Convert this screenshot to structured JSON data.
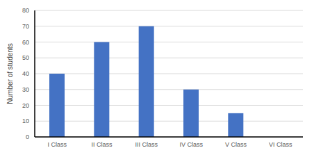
{
  "chart_data": {
    "type": "bar",
    "y_label": "Number of students",
    "categories": [
      "I Class",
      "II Class",
      "III Class",
      "IV Class",
      "V Class",
      "VI Class"
    ],
    "values": [
      40,
      60,
      70,
      30,
      15,
      0
    ],
    "color": "#4472c4",
    "ylim": [
      0,
      80
    ],
    "yticks": [
      0,
      10,
      20,
      30,
      40,
      50,
      60,
      70,
      80
    ],
    "grid": true
  }
}
